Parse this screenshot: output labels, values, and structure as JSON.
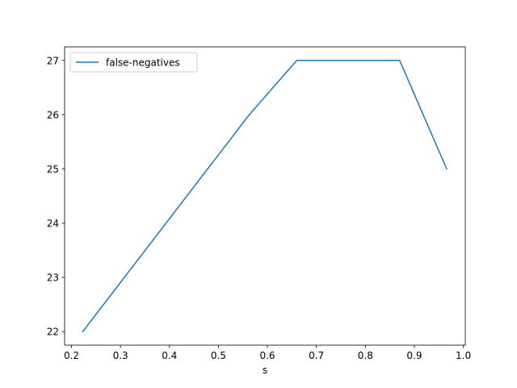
{
  "chart_data": {
    "type": "line",
    "title": "",
    "xlabel": "s",
    "ylabel": "",
    "xlim": [
      0.186,
      1.004
    ],
    "ylim": [
      21.75,
      27.25
    ],
    "xticks": [
      0.2,
      0.3,
      0.4,
      0.5,
      0.6,
      0.7,
      0.8,
      0.9,
      1.0
    ],
    "xtick_labels": [
      "0.2",
      "0.3",
      "0.4",
      "0.5",
      "0.6",
      "0.7",
      "0.8",
      "0.9",
      "1.0"
    ],
    "yticks": [
      22,
      23,
      24,
      25,
      26,
      27
    ],
    "ytick_labels": [
      "22",
      "23",
      "24",
      "25",
      "26",
      "27"
    ],
    "grid": false,
    "legend_position": "top-left",
    "series": [
      {
        "name": "false-negatives",
        "color": "#1f77b4",
        "x": [
          0.223,
          0.563,
          0.66,
          0.87,
          0.966
        ],
        "y": [
          22,
          26,
          27,
          27,
          25
        ]
      }
    ]
  }
}
